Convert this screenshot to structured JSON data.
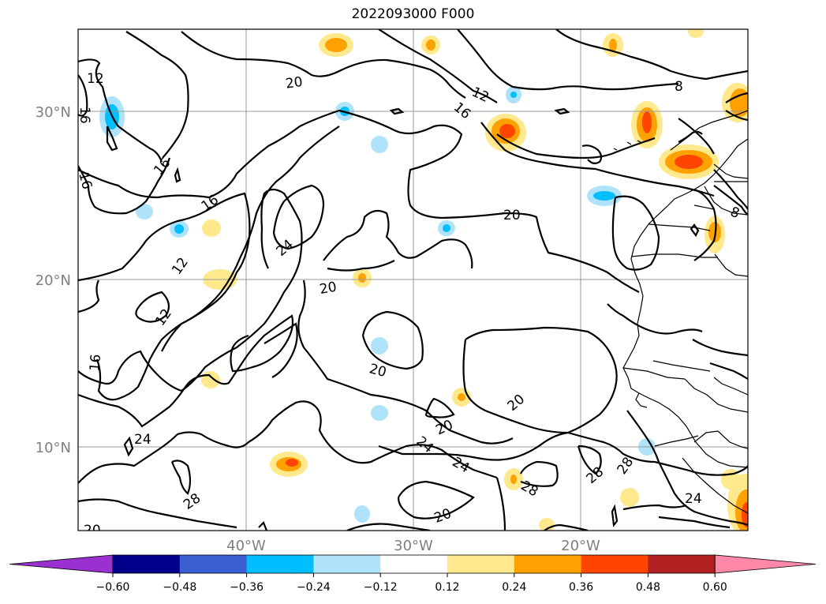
{
  "title": "2022093000 F000",
  "lat_labels": [
    "30°N",
    "20°N",
    "10°N"
  ],
  "lon_labels": [
    "40°W",
    "30°W",
    "20°W"
  ],
  "colorbar": {
    "ticks": [
      "−0.60",
      "−0.48",
      "−0.36",
      "−0.24",
      "−0.12",
      "0.12",
      "0.24",
      "0.36",
      "0.48",
      "0.60"
    ],
    "colors": [
      "#9b30d0",
      "#00008b",
      "#3c5fd1",
      "#00bfff",
      "#aee3fb",
      "#ffffff",
      "#ffe98c",
      "#ffa100",
      "#ff4500",
      "#b22222",
      "#ff88a8"
    ]
  },
  "contour_labels": [
    "12",
    "16",
    "20",
    "16",
    "16",
    "12",
    "12",
    "16",
    "24",
    "20",
    "20",
    "16",
    "12",
    "8",
    "20",
    "8",
    "24",
    "20",
    "20",
    "20",
    "24",
    "24",
    "28",
    "28",
    "28",
    "28",
    "24",
    "20",
    "16"
  ]
}
